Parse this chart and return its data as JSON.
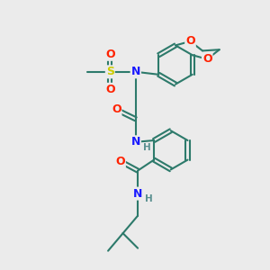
{
  "bg_color": "#ebebeb",
  "bond_color": "#2d7a6b",
  "bond_width": 1.5,
  "atom_colors": {
    "N": "#1a1aff",
    "O": "#ff2200",
    "S": "#cccc00",
    "H": "#5a9090",
    "C": "#2d7a6b"
  },
  "font_size_atom": 9,
  "font_size_H": 7.5
}
